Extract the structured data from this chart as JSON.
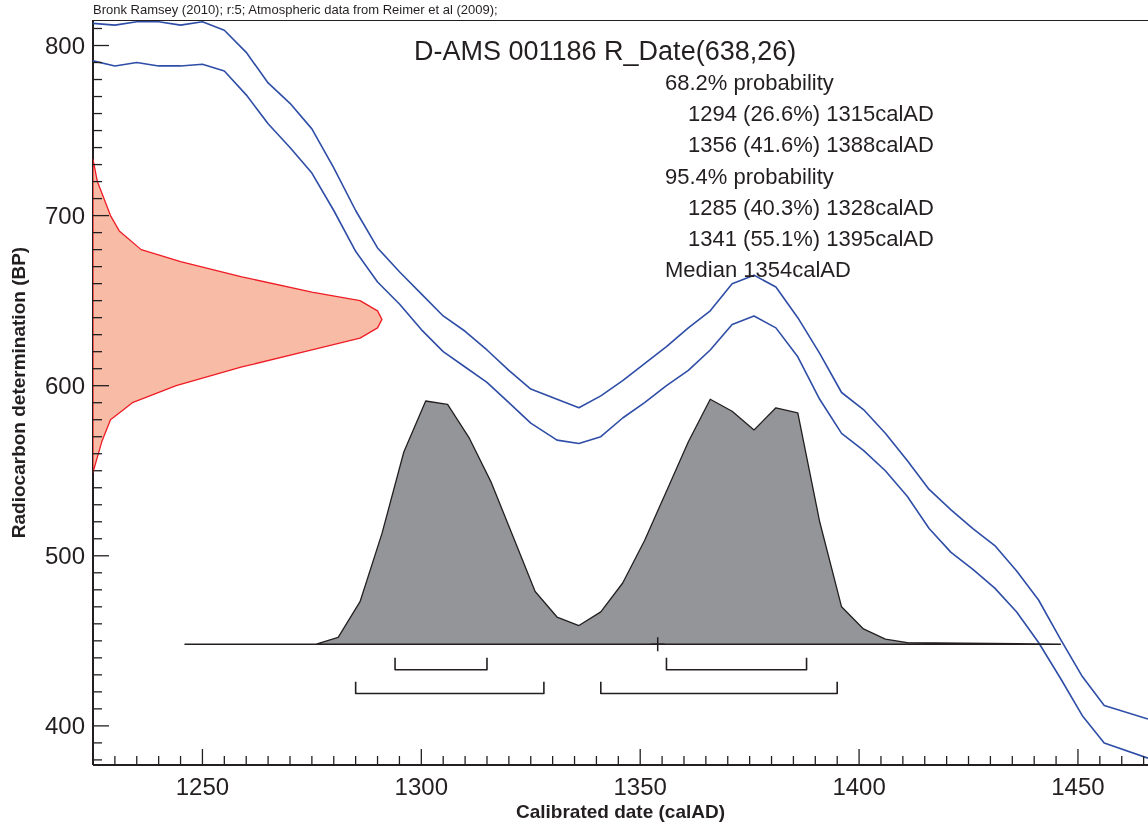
{
  "chart_data": {
    "type": "line",
    "title": "D-AMS 001186 R_Date(638,26)",
    "xlabel": "Calibrated date (calAD)",
    "ylabel": "Radiocarbon determination (BP)",
    "annotations": [
      "Bronk Ramsey (2010); r:5; Atmospheric data from Reimer et al (2009);",
      "68.2% probability",
      "1294 (26.6%) 1315calAD",
      "1356 (41.6%) 1388calAD",
      "95.4% probability",
      "1285 (40.3%) 1328calAD",
      "1341 (55.1%) 1395calAD",
      "Median 1354calAD"
    ],
    "xlim": [
      1225,
      1466
    ],
    "ylim": [
      377,
      815
    ],
    "xticks": [
      {
        "value": 1225,
        "label": null
      },
      {
        "value": 1230,
        "label": null
      },
      {
        "value": 1235,
        "label": null
      },
      {
        "value": 1240,
        "label": null
      },
      {
        "value": 1245,
        "label": null
      },
      1250,
      {
        "value": 1255,
        "label": null
      },
      {
        "value": 1260,
        "label": null
      },
      {
        "value": 1265,
        "label": null
      },
      {
        "value": 1270,
        "label": null
      },
      {
        "value": 1275,
        "label": null
      },
      {
        "value": 1280,
        "label": null
      },
      {
        "value": 1285,
        "label": null
      },
      {
        "value": 1290,
        "label": null
      },
      {
        "value": 1295,
        "label": null
      },
      1300,
      {
        "value": 1305,
        "label": null
      },
      {
        "value": 1310,
        "label": null
      },
      {
        "value": 1315,
        "label": null
      },
      {
        "value": 1320,
        "label": null
      },
      {
        "value": 1325,
        "label": null
      },
      {
        "value": 1330,
        "label": null
      },
      {
        "value": 1335,
        "label": null
      },
      {
        "value": 1340,
        "label": null
      },
      {
        "value": 1345,
        "label": null
      },
      1350,
      {
        "value": 1355,
        "label": null
      },
      {
        "value": 1360,
        "label": null
      },
      {
        "value": 1365,
        "label": null
      },
      {
        "value": 1370,
        "label": null
      },
      {
        "value": 1375,
        "label": null
      },
      {
        "value": 1380,
        "label": null
      },
      {
        "value": 1385,
        "label": null
      },
      {
        "value": 1390,
        "label": null
      },
      {
        "value": 1395,
        "label": null
      },
      1400,
      {
        "value": 1405,
        "label": null
      },
      {
        "value": 1410,
        "label": null
      },
      {
        "value": 1415,
        "label": null
      },
      {
        "value": 1420,
        "label": null
      },
      {
        "value": 1425,
        "label": null
      },
      {
        "value": 1430,
        "label": null
      },
      {
        "value": 1435,
        "label": null
      },
      {
        "value": 1440,
        "label": null
      },
      {
        "value": 1445,
        "label": null
      },
      1450,
      {
        "value": 1455,
        "label": null
      },
      {
        "value": 1460,
        "label": null
      },
      {
        "value": 1465,
        "label": null
      }
    ],
    "yticks": [
      {
        "value": 380,
        "label": null
      },
      {
        "value": 390,
        "label": null
      },
      400,
      {
        "value": 410,
        "label": null
      },
      {
        "value": 420,
        "label": null
      },
      {
        "value": 430,
        "label": null
      },
      {
        "value": 440,
        "label": null
      },
      {
        "value": 450,
        "label": null
      },
      {
        "value": 460,
        "label": null
      },
      {
        "value": 470,
        "label": null
      },
      {
        "value": 480,
        "label": null
      },
      {
        "value": 490,
        "label": null
      },
      500,
      {
        "value": 510,
        "label": null
      },
      {
        "value": 520,
        "label": null
      },
      {
        "value": 530,
        "label": null
      },
      {
        "value": 540,
        "label": null
      },
      {
        "value": 550,
        "label": null
      },
      {
        "value": 560,
        "label": null
      },
      {
        "value": 570,
        "label": null
      },
      {
        "value": 580,
        "label": null
      },
      {
        "value": 590,
        "label": null
      },
      600,
      {
        "value": 610,
        "label": null
      },
      {
        "value": 620,
        "label": null
      },
      {
        "value": 630,
        "label": null
      },
      {
        "value": 640,
        "label": null
      },
      {
        "value": 650,
        "label": null
      },
      {
        "value": 660,
        "label": null
      },
      {
        "value": 670,
        "label": null
      },
      {
        "value": 680,
        "label": null
      },
      {
        "value": 690,
        "label": null
      },
      700,
      {
        "value": 710,
        "label": null
      },
      {
        "value": 720,
        "label": null
      },
      {
        "value": 730,
        "label": null
      },
      {
        "value": 740,
        "label": null
      },
      {
        "value": 750,
        "label": null
      },
      {
        "value": 760,
        "label": null
      },
      {
        "value": 770,
        "label": null
      },
      {
        "value": 780,
        "label": null
      },
      {
        "value": 790,
        "label": null
      },
      800,
      {
        "value": 810,
        "label": null
      }
    ],
    "legend": false,
    "series": [
      {
        "color": "#2e4da6",
        "x": [
          1225,
          1230,
          1235,
          1240,
          1245,
          1250,
          1255,
          1260,
          1265,
          1270,
          1275,
          1280,
          1285,
          1290,
          1295,
          1300,
          1305,
          1310,
          1315,
          1320,
          1325,
          1331,
          1336,
          1341,
          1346,
          1351,
          1356,
          1361,
          1366,
          1371,
          1376,
          1381,
          1386,
          1391,
          1396,
          1401,
          1406,
          1411,
          1416,
          1421,
          1426,
          1431,
          1436,
          1441,
          1446,
          1451,
          1456,
          1466
        ],
        "values": [
          813,
          812,
          814,
          814,
          812,
          814,
          809,
          796,
          778,
          766,
          751,
          728,
          703,
          681,
          667,
          654,
          641,
          632,
          621,
          609,
          598,
          592,
          587,
          594,
          603,
          613,
          623,
          634,
          644,
          660,
          665,
          658,
          640,
          619,
          596,
          586,
          572,
          556,
          539,
          527,
          516,
          506,
          491,
          474,
          451,
          429,
          412,
          404
        ]
      },
      {
        "color": "#2e4da6",
        "x": [
          1225,
          1230,
          1235,
          1240,
          1245,
          1250,
          1255,
          1260,
          1265,
          1270,
          1275,
          1280,
          1285,
          1290,
          1295,
          1300,
          1305,
          1310,
          1315,
          1320,
          1325,
          1331,
          1336,
          1341,
          1346,
          1351,
          1356,
          1361,
          1366,
          1371,
          1376,
          1381,
          1386,
          1391,
          1396,
          1401,
          1406,
          1411,
          1416,
          1421,
          1426,
          1431,
          1436,
          1441,
          1446,
          1451,
          1456,
          1466
        ],
        "values": [
          791,
          788,
          790,
          788,
          788,
          789,
          785,
          771,
          754,
          740,
          725,
          703,
          679,
          661,
          648,
          633,
          620,
          611,
          602,
          590,
          578,
          568,
          566,
          570,
          581,
          590,
          600,
          609,
          621,
          636,
          641,
          634,
          617,
          592,
          572,
          562,
          550,
          535,
          516,
          502,
          492,
          481,
          467,
          449,
          428,
          406,
          390,
          381
        ]
      },
      {
        "type": "area",
        "color": "#f8bca6",
        "x": [
          1225,
          1226,
          1229,
          1231,
          1236,
          1245,
          1259,
          1275,
          1286,
          1290,
          1291,
          1290,
          1286,
          1275,
          1259,
          1244,
          1234,
          1229,
          1227,
          1225
        ],
        "values": [
          733,
          720,
          700,
          691,
          680,
          673,
          664,
          655,
          650,
          644,
          639,
          634,
          628,
          621,
          611,
          600,
          590,
          580,
          567,
          549
        ]
      },
      {
        "type": "area",
        "color": "#949598",
        "x": [
          1246,
          1276,
          1281,
          1286,
          1291,
          1296,
          1301,
          1306,
          1311,
          1316,
          1321,
          1326,
          1331,
          1336,
          1341,
          1346,
          1351,
          1356,
          1361,
          1366,
          1371,
          1376,
          1381,
          1386,
          1391,
          1396,
          1401,
          1406,
          1411,
          1446
        ],
        "values": [
          448,
          448,
          452,
          473,
          513,
          561,
          591,
          589,
          569,
          543,
          511,
          479,
          464,
          459,
          467,
          484,
          509,
          538,
          567,
          592,
          585,
          574,
          587,
          584,
          520,
          470,
          457,
          451,
          449,
          448
        ]
      },
      {
        "type": "line",
        "color": "#231f20",
        "x": [
          1294,
          1294,
          1315,
          1315
        ],
        "values": [
          440,
          433,
          433,
          440
        ]
      },
      {
        "type": "line",
        "color": "#231f20",
        "x": [
          1356,
          1356,
          1388,
          1388
        ],
        "values": [
          440,
          433,
          433,
          440
        ]
      },
      {
        "type": "line",
        "color": "#231f20",
        "x": [
          1285,
          1285,
          1328,
          1328
        ],
        "values": [
          426,
          419,
          419,
          426
        ]
      },
      {
        "type": "line",
        "color": "#231f20",
        "x": [
          1341,
          1341,
          1395,
          1395
        ],
        "values": [
          426,
          419,
          419,
          426
        ]
      },
      {
        "type": "scatter",
        "color": "#231f20",
        "marker": "cross",
        "x": [
          1354
        ],
        "values": [
          448
        ]
      }
    ]
  }
}
